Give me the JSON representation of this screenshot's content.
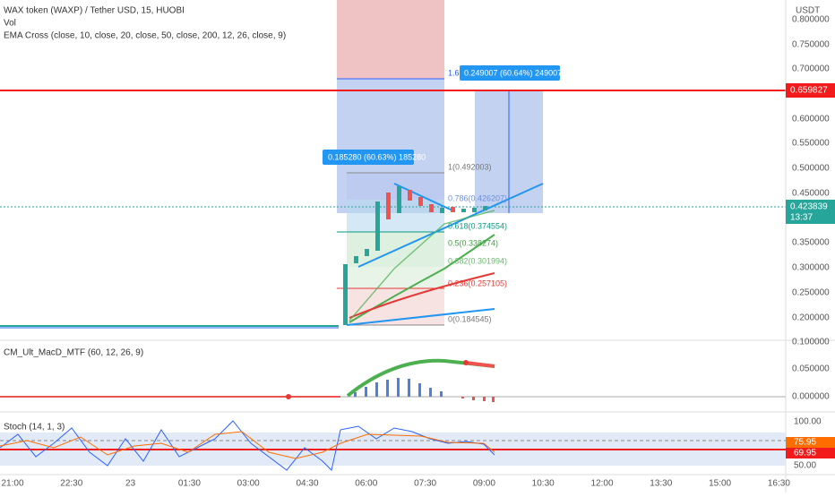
{
  "header": {
    "symbol": "WAX token (WAXP) / Tether USD, 15, HUOBI",
    "vol": "Vol",
    "ema": "EMA Cross (close, 10, close, 20, close, 50, close, 200, 12, 26, close, 9)"
  },
  "price_axis": {
    "unit": "USDT",
    "ticks": [
      "0.800000",
      "0.750000",
      "0.700000",
      "0.600000",
      "0.550000",
      "0.500000",
      "0.450000",
      "0.350000",
      "0.300000",
      "0.250000",
      "0.200000"
    ]
  },
  "badges": {
    "red_line": "0.659827",
    "last_price": "0.423839",
    "countdown": "13:37"
  },
  "measures": [
    "0.185280 (60.63%) 185280",
    "0.249007 (60.64%) 249007"
  ],
  "fib": {
    "ext": "1.6",
    "levels": [
      "1(0.492003)",
      "0.786(0.426207)",
      "0.618(0.374554)",
      "0.5(0.338274)",
      "0.382(0.301994)",
      "0.236(0.257105)",
      "0(0.184545)"
    ]
  },
  "macd": {
    "title": "CM_Ult_MacD_MTF (60, 12, 26, 9)",
    "ticks": [
      "0.100000",
      "0.050000",
      "0.000000"
    ]
  },
  "stoch": {
    "title": "Stoch (14, 1, 3)",
    "ticks": [
      "100.00",
      "50.00"
    ],
    "badges": [
      "75.95",
      "69.95"
    ]
  },
  "time_axis": [
    "21:00",
    "22:30",
    "23",
    "01:30",
    "03:00",
    "04:30",
    "06:00",
    "07:30",
    "09:00",
    "10:30",
    "12:00",
    "13:30",
    "15:00",
    "16:30"
  ]
}
